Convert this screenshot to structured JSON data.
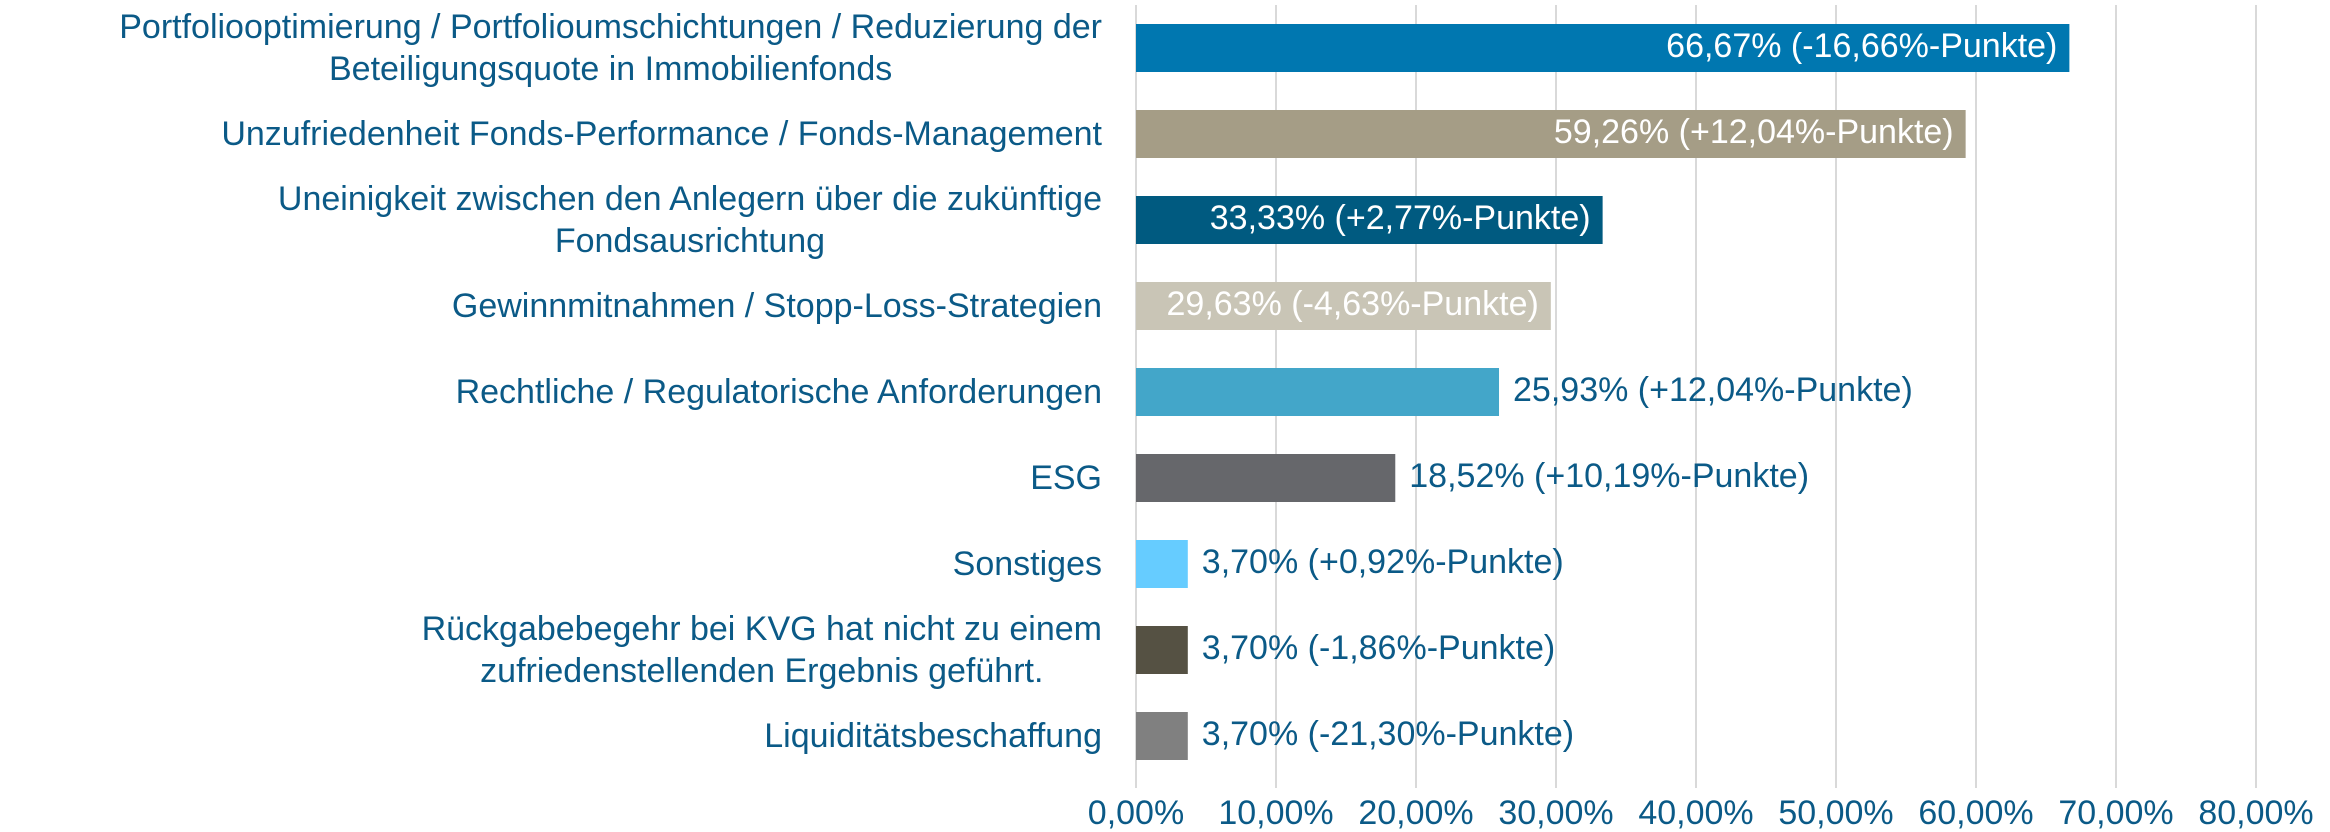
{
  "chart_data": {
    "type": "bar",
    "orientation": "horizontal",
    "categories": [
      "Portfoliooptimierung / Portfolioumschichtungen / Reduzierung der\nBeteiligungsquote in Immobilienfonds",
      "Unzufriedenheit Fonds-Performance / Fonds-Management",
      "Uneinigkeit zwischen den Anlegern über die zukünftige\nFondsausrichtung",
      "Gewinnmitnahmen / Stopp-Loss-Strategien",
      "Rechtliche / Regulatorische Anforderungen",
      "ESG",
      "Sonstiges",
      "Rückgabebegehr bei KVG hat nicht zu einem\nzufriedenstellenden Ergebnis geführt.",
      "Liquiditätsbeschaffung"
    ],
    "values": [
      66.67,
      59.26,
      33.33,
      29.63,
      25.93,
      18.52,
      3.7,
      3.7,
      3.7
    ],
    "value_labels": [
      "66,67% (-16,66%-Punkte)",
      "59,26% (+12,04%-Punkte)",
      "33,33% (+2,77%-Punkte)",
      "29,63% (-4,63%-Punkte)",
      "25,93% (+12,04%-Punkte)",
      "18,52% (+10,19%-Punkte)",
      "3,70% (+0,92%-Punkte)",
      "3,70% (-1,86%-Punkte)",
      "3,70% (-21,30%-Punkte)"
    ],
    "colors": [
      "#0077b0",
      "#a59d86",
      "#005a80",
      "#c9c5b6",
      "#43a6c9",
      "#66676b",
      "#66ccff",
      "#555143",
      "#808080"
    ],
    "xlim": [
      0,
      80
    ],
    "xticks": [
      {
        "value": 0,
        "label": "0,00%"
      },
      {
        "value": 10,
        "label": "10,00%"
      },
      {
        "value": 20,
        "label": "20,00%"
      },
      {
        "value": 30,
        "label": "30,00%"
      },
      {
        "value": 40,
        "label": "40,00%"
      },
      {
        "value": 50,
        "label": "50,00%"
      },
      {
        "value": 60,
        "label": "60,00%"
      },
      {
        "value": 70,
        "label": "70,00%"
      },
      {
        "value": 80,
        "label": "80,00%"
      }
    ],
    "grid": true
  }
}
